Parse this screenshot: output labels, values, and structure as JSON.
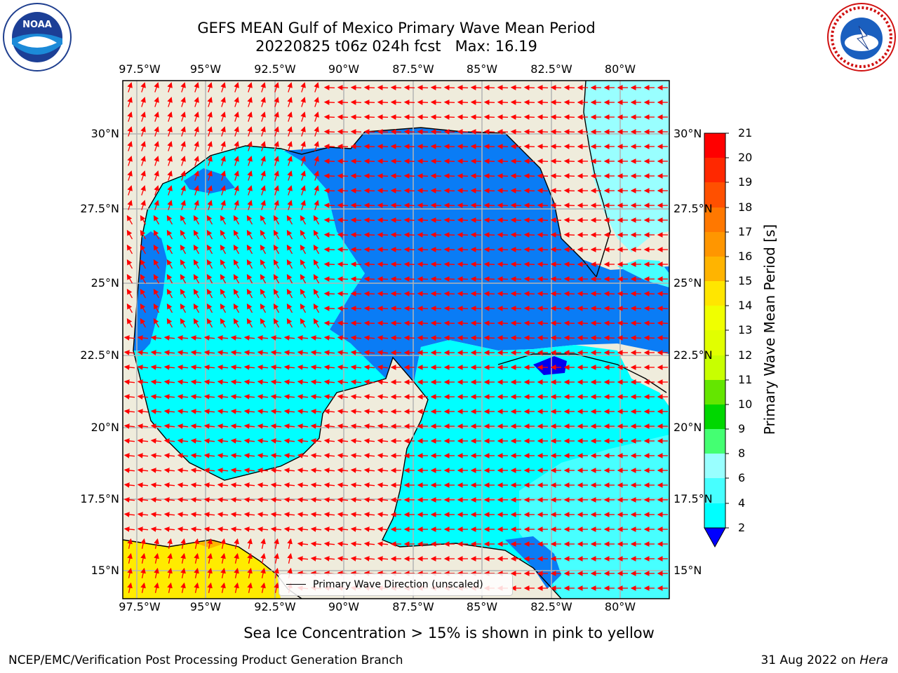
{
  "title_line1": "GEFS MEAN Gulf of Mexico Primary Wave Mean Period",
  "title_line2": "20220825 t06z 024h fcst   Max: 16.19",
  "logos": {
    "left": "noaa-logo",
    "right": "nws-logo"
  },
  "map": {
    "lon_ticks": [
      "97.5°W",
      "95°W",
      "92.5°W",
      "90°W",
      "87.5°W",
      "85°W",
      "82.5°W",
      "80°W"
    ],
    "lat_ticks": [
      "30°N",
      "27.5°N",
      "25°N",
      "22.5°N",
      "20°N",
      "17.5°N",
      "15°N"
    ],
    "lon_range": [
      -98,
      -78.2
    ],
    "lat_range": [
      14,
      31.8
    ],
    "colors": {
      "land": "#efecdc",
      "period_2_4": "#0a7cf5",
      "period_4_6": "#00ffff",
      "period_6_8": "#47ffff",
      "period_8_9": "#99ffff",
      "period_below_2": "#0000ee",
      "sea_ice": "#ffeb00",
      "arrows": "#ff0000",
      "grid": "#b4b4b4"
    }
  },
  "colorbar": {
    "label": "Primary Wave Mean Period [s]",
    "ticks": [
      "21",
      "20",
      "19",
      "18",
      "17",
      "16",
      "15",
      "14",
      "13",
      "12",
      "11",
      "10",
      "9",
      "8",
      "6",
      "4",
      "2"
    ],
    "colors": [
      "#ff0000",
      "#ff2800",
      "#ff5000",
      "#ff7800",
      "#ff9600",
      "#ffb400",
      "#ffe600",
      "#f0ff00",
      "#e1ff00",
      "#c8ff00",
      "#64e600",
      "#00d700",
      "#44ff72",
      "#99ffff",
      "#47ffff",
      "#00ffff",
      "#0a7cf5"
    ],
    "extend_color": "#0000ff"
  },
  "legend": {
    "label": "Primary Wave Direction (unscaled)"
  },
  "caption": "Sea Ice Concentration > 15% is shown in pink to yellow",
  "footer": {
    "left": "NCEP/EMC/Verification Post Processing Product Generation Branch",
    "date": "31 Aug 2022 on",
    "host": "Hera"
  }
}
